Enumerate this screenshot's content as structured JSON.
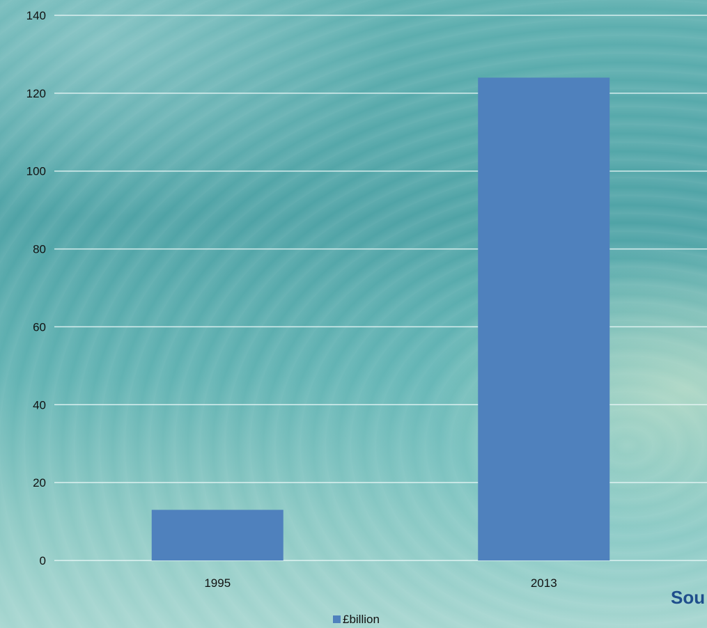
{
  "chart_data": {
    "type": "bar",
    "categories": [
      "1995",
      "2013"
    ],
    "series": [
      {
        "name": "£billion",
        "values": [
          13,
          124
        ],
        "color": "#4f81bd"
      }
    ],
    "title": "",
    "xlabel": "",
    "ylabel": "",
    "ylim": [
      0,
      140
    ],
    "yticks": [
      "0",
      "20",
      "40",
      "60",
      "80",
      "100",
      "120",
      "140"
    ],
    "grid": true,
    "legend_position": "bottom"
  },
  "footer": {
    "source_text": "Sou"
  }
}
